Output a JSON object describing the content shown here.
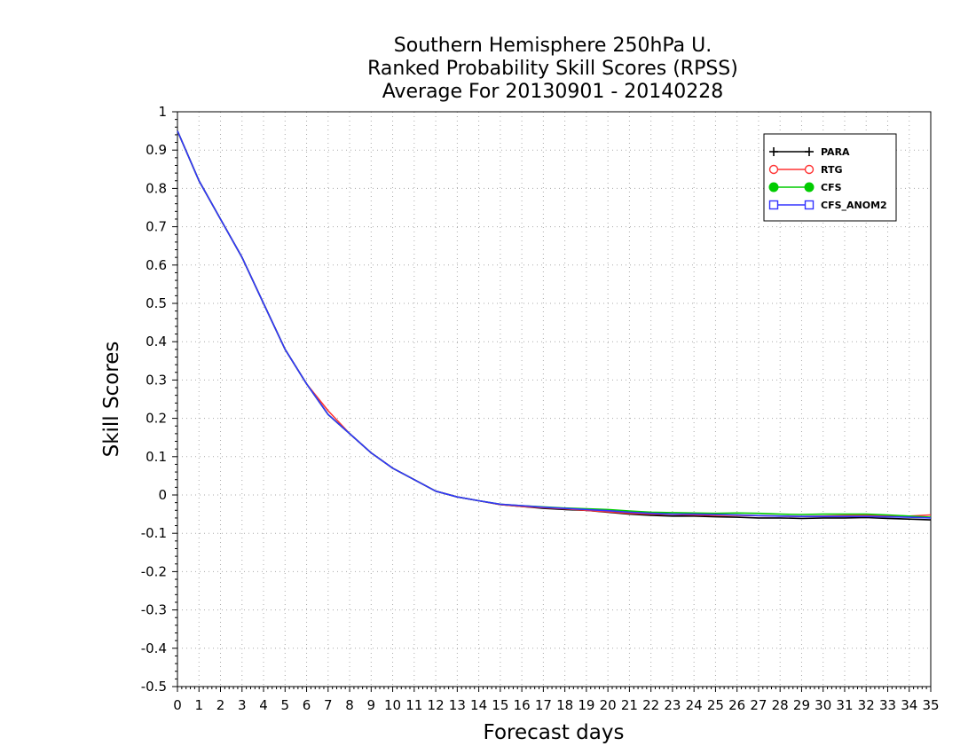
{
  "chart_data": {
    "type": "line",
    "title_lines": [
      "Southern Hemisphere 250hPa U.",
      "Ranked Probability Skill Scores (RPSS)",
      "Average For 20130901 - 20140228"
    ],
    "xlabel": "Forecast days",
    "ylabel": "Skill Scores",
    "xlim": [
      0,
      35
    ],
    "ylim": [
      -0.5,
      1
    ],
    "x_ticks": [
      0,
      1,
      2,
      3,
      4,
      5,
      6,
      7,
      8,
      9,
      10,
      11,
      12,
      13,
      14,
      15,
      16,
      17,
      18,
      19,
      20,
      21,
      22,
      23,
      24,
      25,
      26,
      27,
      28,
      29,
      30,
      31,
      32,
      33,
      34,
      35
    ],
    "y_ticks": [
      "1",
      "0.9",
      "0.8",
      "0.7",
      "0.6",
      "0.5",
      "0.4",
      "0.3",
      "0.2",
      "0.1",
      "0",
      "-0.1",
      "-0.2",
      "-0.3",
      "-0.4",
      "-0.5"
    ],
    "grid": true,
    "legend_position": "top-right",
    "x": [
      0,
      1,
      2,
      3,
      4,
      5,
      6,
      7,
      8,
      9,
      10,
      11,
      12,
      13,
      14,
      15,
      16,
      17,
      18,
      19,
      20,
      21,
      22,
      23,
      24,
      25,
      26,
      27,
      28,
      29,
      30,
      31,
      32,
      33,
      34,
      35
    ],
    "series": [
      {
        "name": "PARA",
        "color": "#000000",
        "marker": "plus",
        "values": [
          0.95,
          0.82,
          0.72,
          0.62,
          0.5,
          0.38,
          0.29,
          0.21,
          0.16,
          0.11,
          0.07,
          0.04,
          0.01,
          -0.005,
          -0.015,
          -0.025,
          -0.03,
          -0.035,
          -0.038,
          -0.04,
          -0.045,
          -0.05,
          -0.053,
          -0.055,
          -0.055,
          -0.057,
          -0.058,
          -0.06,
          -0.06,
          -0.061,
          -0.06,
          -0.06,
          -0.059,
          -0.061,
          -0.063,
          -0.065
        ]
      },
      {
        "name": "RTG",
        "color": "#ff3333",
        "marker": "open-circle",
        "values": [
          0.95,
          0.82,
          0.72,
          0.62,
          0.5,
          0.38,
          0.29,
          0.22,
          0.16,
          0.11,
          0.07,
          0.04,
          0.01,
          -0.005,
          -0.015,
          -0.025,
          -0.03,
          -0.033,
          -0.036,
          -0.04,
          -0.044,
          -0.048,
          -0.05,
          -0.051,
          -0.052,
          -0.053,
          -0.053,
          -0.054,
          -0.055,
          -0.056,
          -0.055,
          -0.054,
          -0.053,
          -0.055,
          -0.055,
          -0.052
        ]
      },
      {
        "name": "CFS",
        "color": "#00cc00",
        "marker": "filled-circle",
        "values": [
          0.95,
          0.82,
          0.72,
          0.62,
          0.5,
          0.38,
          0.29,
          0.21,
          0.16,
          0.11,
          0.07,
          0.04,
          0.01,
          -0.005,
          -0.015,
          -0.024,
          -0.028,
          -0.031,
          -0.034,
          -0.036,
          -0.038,
          -0.042,
          -0.045,
          -0.046,
          -0.047,
          -0.048,
          -0.047,
          -0.048,
          -0.05,
          -0.051,
          -0.05,
          -0.05,
          -0.05,
          -0.052,
          -0.055,
          -0.058
        ]
      },
      {
        "name": "CFS_ANOM2",
        "color": "#3333ff",
        "marker": "open-square",
        "values": [
          0.95,
          0.82,
          0.72,
          0.62,
          0.5,
          0.38,
          0.29,
          0.21,
          0.16,
          0.11,
          0.07,
          0.04,
          0.01,
          -0.005,
          -0.015,
          -0.024,
          -0.028,
          -0.032,
          -0.035,
          -0.038,
          -0.041,
          -0.045,
          -0.048,
          -0.05,
          -0.05,
          -0.051,
          -0.052,
          -0.054,
          -0.055,
          -0.056,
          -0.056,
          -0.056,
          -0.056,
          -0.057,
          -0.058,
          -0.06
        ]
      }
    ]
  }
}
